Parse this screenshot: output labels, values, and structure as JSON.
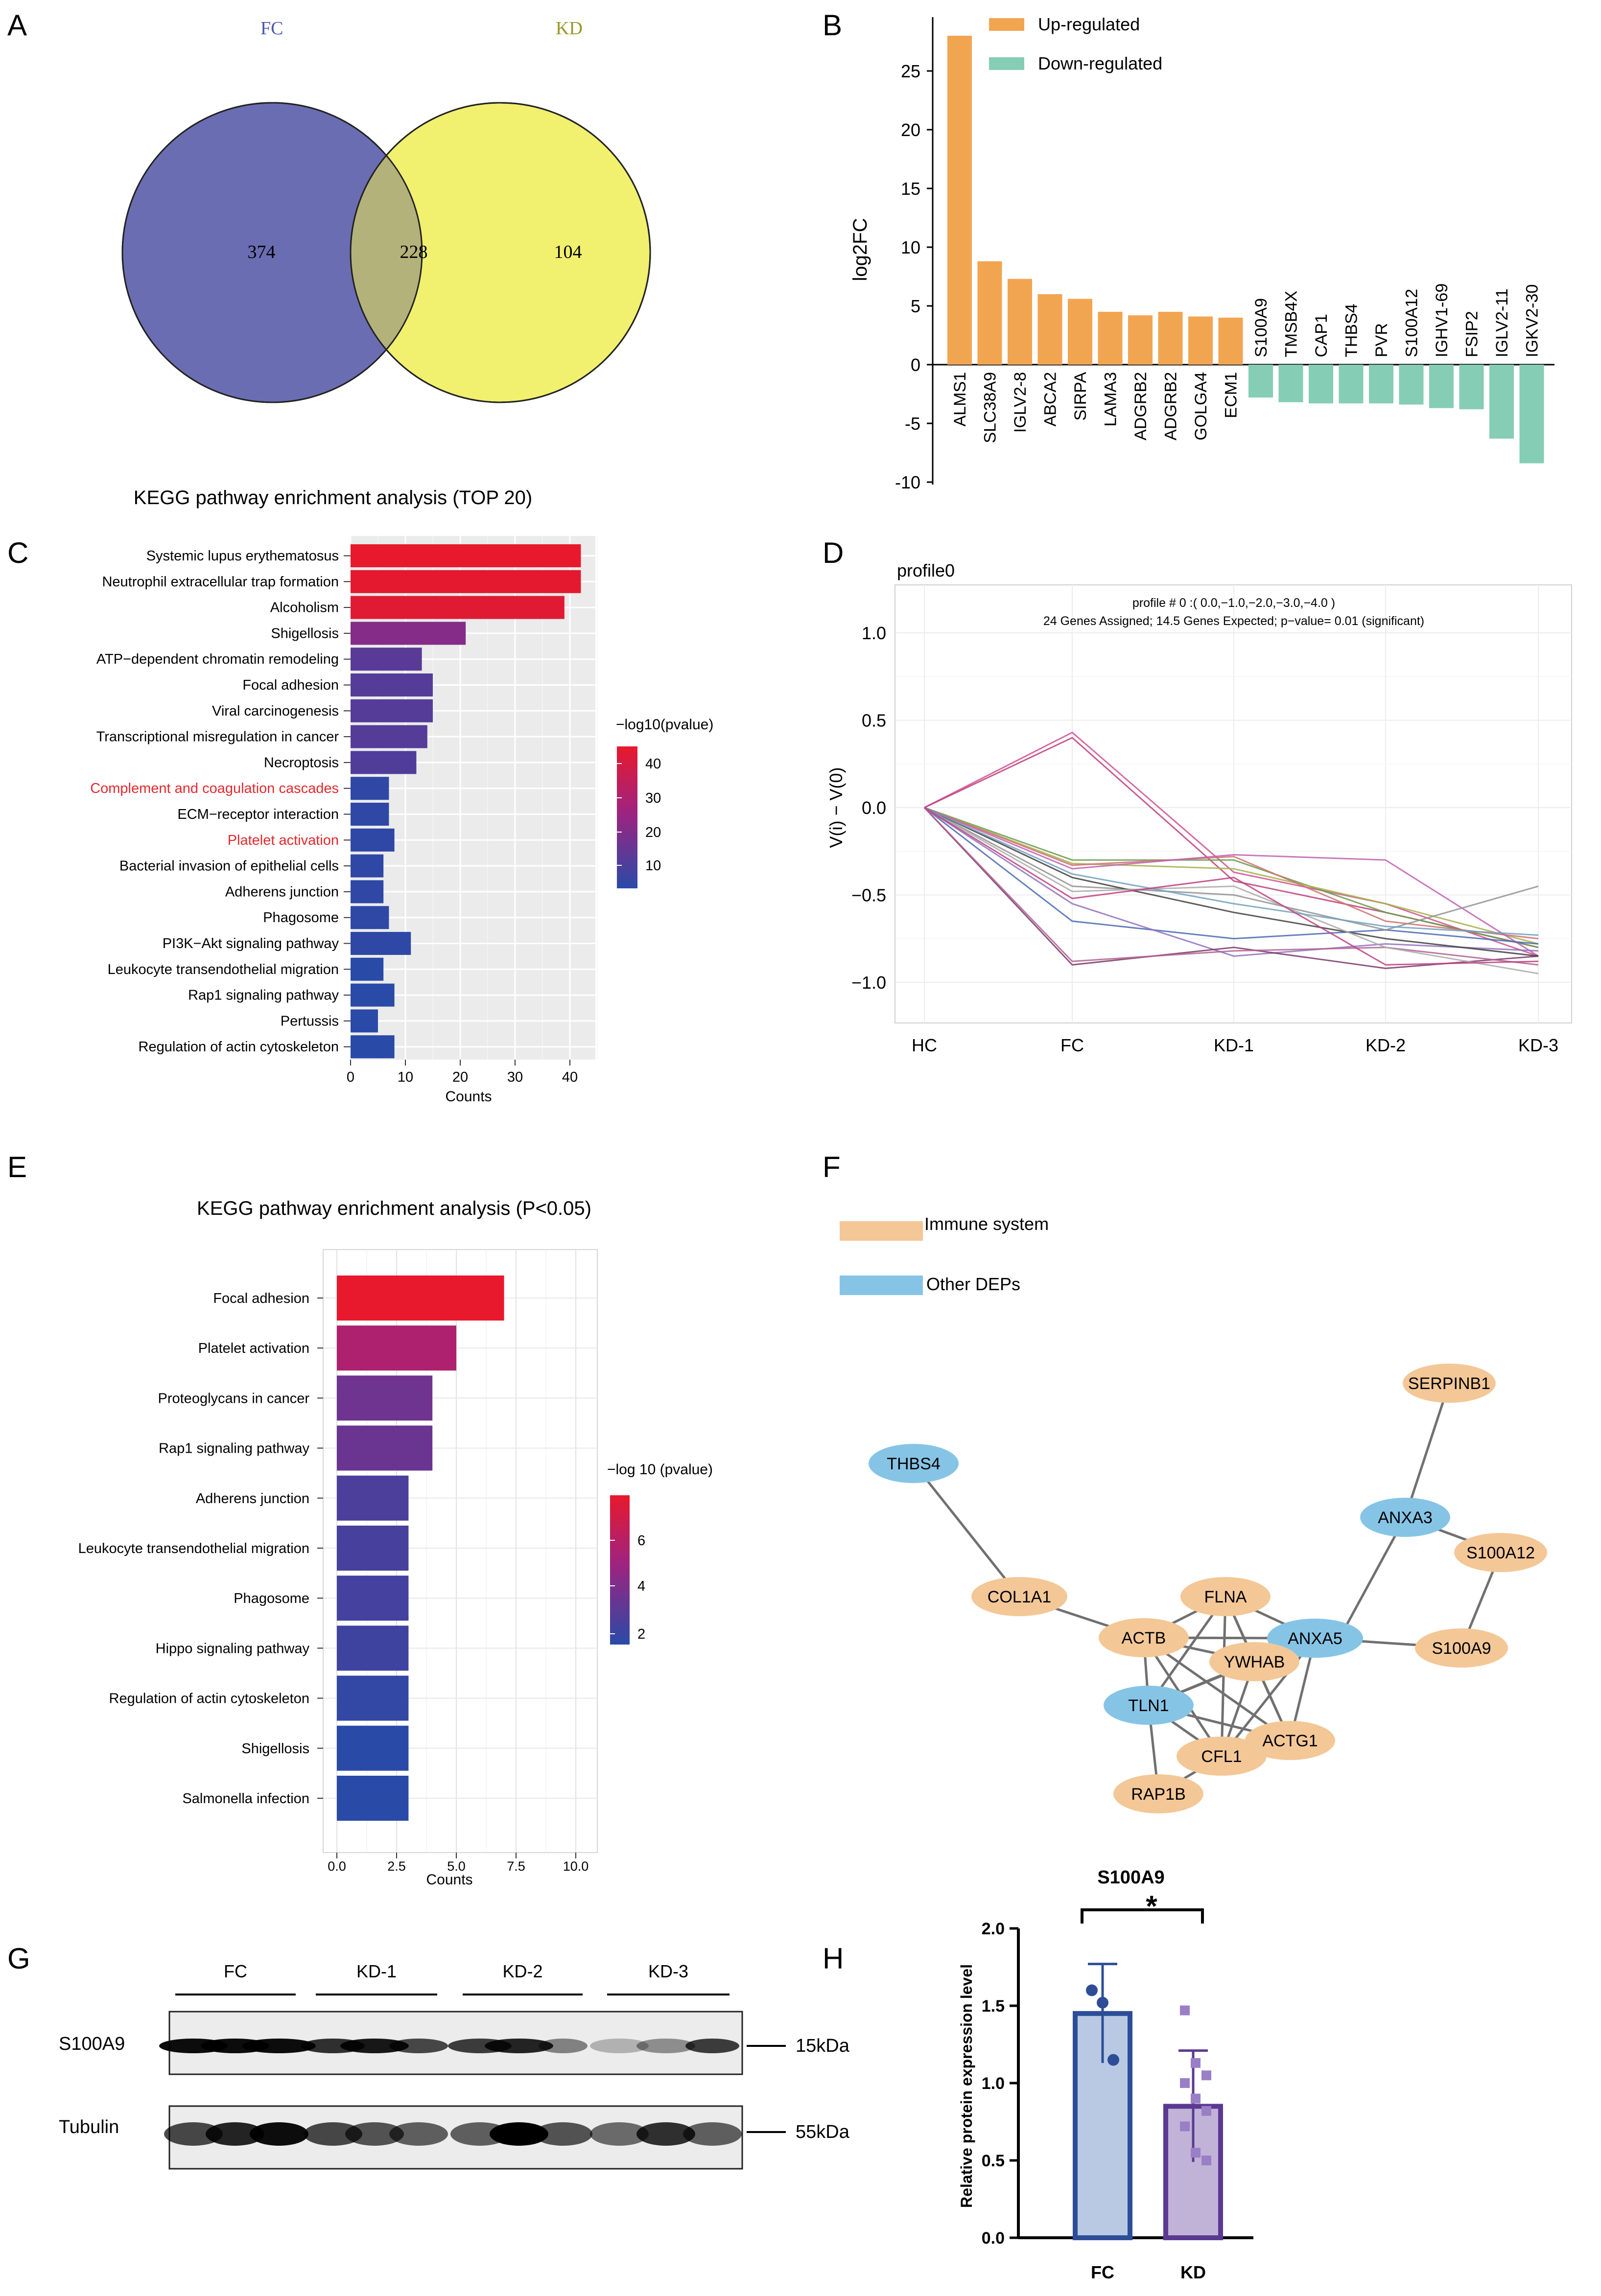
{
  "panels": {
    "A": {
      "letter": "A",
      "sets": [
        {
          "name": "FC",
          "color": "#6b6db3",
          "text_color": "#4a57b0"
        },
        {
          "name": "KD",
          "color": "#f1f06f",
          "text_color": "#9a9628"
        }
      ],
      "counts": {
        "only_fc": "374",
        "overlap": "228",
        "only_kd": "104"
      },
      "overlap_color": "#b3b27a"
    },
    "B": {
      "letter": "B",
      "chart_data": {
        "type": "bar",
        "ylabel": "log2FC",
        "ylim": [
          -10,
          28
        ],
        "yticks": [
          25,
          20,
          15,
          10,
          5,
          0,
          -5,
          -10
        ],
        "legend": [
          {
            "label": "Up-regulated",
            "color": "#f2a551"
          },
          {
            "label": "Down-regulated",
            "color": "#86cdb5"
          }
        ],
        "categories": [
          "ALMS1",
          "SLC38A9",
          "IGLV2-8",
          "ABCA2",
          "SIRPA",
          "LAMA3",
          "ADGRB2",
          "ADGRB2",
          "GOLGA4",
          "ECM1",
          "S100A9",
          "TMSB4X",
          "CAP1",
          "THBS4",
          "PVR",
          "S100A12",
          "IGHV1-69",
          "FSIP2",
          "IGLV2-11",
          "IGKV2-30"
        ],
        "values": [
          28.0,
          8.8,
          7.3,
          6.0,
          5.6,
          4.5,
          4.2,
          4.5,
          4.1,
          4.0,
          -2.8,
          -3.2,
          -3.3,
          -3.3,
          -3.3,
          -3.4,
          -3.7,
          -3.8,
          -6.3,
          -8.4
        ]
      }
    },
    "C": {
      "letter": "C",
      "chart_data": {
        "type": "bar",
        "title": "KEGG pathway enrichment analysis (TOP 20)",
        "xlabel": "Counts",
        "xlim": [
          0,
          45
        ],
        "xticks": [
          0,
          10,
          20,
          30,
          40
        ],
        "legend_title": "−log10(pvalue)",
        "legend_ticks": [
          "40",
          "30",
          "20",
          "10"
        ],
        "pathways": [
          "Systemic lupus erythematosus",
          "Neutrophil extracellular trap formation",
          "Alcoholism",
          "Shigellosis",
          "ATP−dependent chromatin remodeling",
          "Focal adhesion",
          "Viral carcinogenesis",
          "Transcriptional misregulation in cancer",
          "Necroptosis",
          "Complement and coagulation cascades",
          "ECM−receptor interaction",
          "Platelet activation",
          "Bacterial invasion of epithelial cells",
          "Adherens junction",
          "Phagosome",
          "PI3K−Akt signaling pathway",
          "Leukocyte transendothelial migration",
          "Rap1 signaling pathway",
          "Pertussis",
          "Regulation of actin cytoskeleton"
        ],
        "counts": [
          42,
          42,
          39,
          21,
          13,
          15,
          15,
          14,
          12,
          7,
          7,
          8,
          6,
          6,
          7,
          11,
          6,
          8,
          5,
          8
        ],
        "neglog10p": [
          48,
          47,
          46,
          22,
          13,
          12,
          12,
          12,
          11,
          4,
          4,
          4,
          4,
          4,
          4,
          4,
          3,
          3,
          3,
          3
        ],
        "highlighted": [
          "Complement and coagulation cascades",
          "Platelet activation"
        ],
        "highlight_color": "#e3282c"
      }
    },
    "D": {
      "letter": "D",
      "chart_data": {
        "type": "line",
        "profile_label": "profile0",
        "annotation_line1": "profile # 0 :( 0.0,−1.0,−2.0,−3.0,−4.0 )",
        "annotation_line2": "24 Genes Assigned; 14.5 Genes Expected; p−value= 0.01 (significant)",
        "ylabel": "V(i) − V(0)",
        "ylim": [
          -1.15,
          1.3
        ],
        "yticks": [
          "1.0",
          "0.5",
          "0.0",
          "−0.5",
          "−1.0"
        ],
        "ytick_values": [
          1.0,
          0.5,
          0.0,
          -0.5,
          -1.0
        ],
        "x": [
          "HC",
          "FC",
          "KD-1",
          "KD-2",
          "KD-3"
        ],
        "series": [
          {
            "color": "#d0508f",
            "values": [
              0,
              0.43,
              -0.37,
              -0.55,
              -0.85
            ]
          },
          {
            "color": "#c0407a",
            "values": [
              0,
              0.4,
              -0.42,
              -0.6,
              -0.8
            ]
          },
          {
            "color": "#6a9a4a",
            "values": [
              0,
              -0.3,
              -0.3,
              -0.6,
              -0.8
            ]
          },
          {
            "color": "#a6b04a",
            "values": [
              0,
              -0.32,
              -0.35,
              -0.55,
              -0.78
            ]
          },
          {
            "color": "#d07070",
            "values": [
              0,
              -0.33,
              -0.28,
              -0.65,
              -0.75
            ]
          },
          {
            "color": "#c060b0",
            "values": [
              0,
              -0.35,
              -0.27,
              -0.3,
              -0.85
            ]
          },
          {
            "color": "#4a6ab0",
            "values": [
              0,
              -0.65,
              -0.75,
              -0.7,
              -0.78
            ]
          },
          {
            "color": "#9070c0",
            "values": [
              0,
              -0.55,
              -0.85,
              -0.78,
              -0.82
            ]
          },
          {
            "color": "#7a3a6a",
            "values": [
              0,
              -0.9,
              -0.8,
              -0.92,
              -0.85
            ]
          },
          {
            "color": "#b06090",
            "values": [
              0,
              -0.88,
              -0.82,
              -0.8,
              -0.9
            ]
          },
          {
            "color": "#909090",
            "values": [
              0,
              -0.45,
              -0.5,
              -0.7,
              -0.45
            ]
          },
          {
            "color": "#404040",
            "values": [
              0,
              -0.4,
              -0.6,
              -0.75,
              -0.85
            ]
          },
          {
            "color": "#aaaaaa",
            "values": [
              0,
              -0.48,
              -0.45,
              -0.8,
              -0.95
            ]
          },
          {
            "color": "#70a0c0",
            "values": [
              0,
              -0.38,
              -0.55,
              -0.68,
              -0.73
            ]
          },
          {
            "color": "#c04080",
            "values": [
              0,
              -0.52,
              -0.4,
              -0.9,
              -0.88
            ]
          }
        ]
      }
    },
    "E": {
      "letter": "E",
      "chart_data": {
        "type": "bar",
        "title": "KEGG  pathway enrichment analysis (P<0.05)",
        "xlabel": "Counts",
        "xlim": [
          0,
          10.5
        ],
        "xticks": [
          "0.0",
          "2.5",
          "5.0",
          "7.5",
          "10.0"
        ],
        "xtick_values": [
          0,
          2.5,
          5,
          7.5,
          10
        ],
        "legend_title": "−log 10 (pvalue)",
        "legend_ticks": [
          "6",
          "4",
          "2"
        ],
        "pathways": [
          "Focal adhesion",
          "Platelet activation",
          "Proteoglycans in cancer",
          "Rap1 signaling pathway",
          "Adherens junction",
          "Leukocyte transendothelial migration",
          "Phagosome",
          "Hippo signaling pathway",
          "Regulation of actin cytoskeleton",
          "Shigellosis",
          "Salmonella infection"
        ],
        "counts": [
          7,
          5,
          4,
          4,
          3,
          3,
          3,
          3,
          3,
          3,
          3
        ],
        "neglog10p": [
          7.0,
          5.2,
          3.6,
          3.5,
          2.8,
          2.7,
          2.6,
          2.5,
          2.2,
          2.0,
          2.0
        ]
      }
    },
    "F": {
      "letter": "F",
      "legend": [
        {
          "label": "Immune system",
          "color": "#f4c797"
        },
        {
          "label": "Other DEPs",
          "color": "#86c4e6"
        }
      ],
      "nodes": [
        {
          "id": "SERPINB1",
          "group": "immune"
        },
        {
          "id": "THBS4",
          "group": "other"
        },
        {
          "id": "ANXA3",
          "group": "other"
        },
        {
          "id": "S100A12",
          "group": "immune"
        },
        {
          "id": "COL1A1",
          "group": "immune"
        },
        {
          "id": "FLNA",
          "group": "immune"
        },
        {
          "id": "ACTB",
          "group": "immune"
        },
        {
          "id": "ANXA5",
          "group": "other"
        },
        {
          "id": "YWHAB",
          "group": "immune"
        },
        {
          "id": "S100A9",
          "group": "immune"
        },
        {
          "id": "TLN1",
          "group": "other"
        },
        {
          "id": "ACTG1",
          "group": "immune"
        },
        {
          "id": "CFL1",
          "group": "immune"
        },
        {
          "id": "RAP1B",
          "group": "immune"
        }
      ]
    },
    "G": {
      "letter": "G",
      "groups": [
        "FC",
        "KD-1",
        "KD-2",
        "KD-3"
      ],
      "rows": [
        {
          "label": "S100A9",
          "size": "15kDa"
        },
        {
          "label": "Tubulin",
          "size": "55kDa"
        }
      ]
    },
    "H": {
      "letter": "H",
      "chart_data": {
        "type": "bar",
        "title": "S100A9",
        "significance": "*",
        "ylabel": "Relative protein expression level",
        "ylim": [
          0,
          2.0
        ],
        "yticks": [
          "0.0",
          "0.5",
          "1.0",
          "1.5",
          "2.0"
        ],
        "ytick_values": [
          0,
          0.5,
          1.0,
          1.5,
          2.0
        ],
        "categories": [
          "FC",
          "KD"
        ],
        "means": [
          1.45,
          0.85
        ],
        "sd": [
          0.32,
          0.36
        ],
        "points": [
          [
            1.6,
            1.52,
            1.15
          ],
          [
            1.47,
            1.13,
            1.05,
            1.0,
            0.9,
            0.82,
            0.72,
            0.55,
            0.5
          ]
        ],
        "colors": [
          {
            "fill": "#b9c9e4",
            "stroke": "#2d4e97"
          },
          {
            "fill": "#c1b3d8",
            "stroke": "#5a3a91"
          }
        ]
      }
    }
  }
}
